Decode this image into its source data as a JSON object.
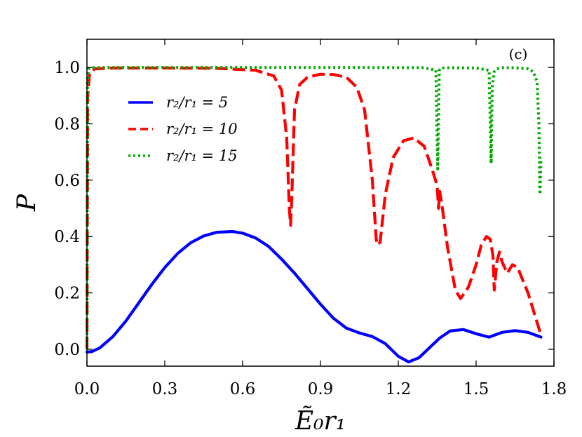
{
  "chart_data": {
    "type": "line",
    "panel_label": "(c)",
    "xlabel": "Ẽ₀r₁",
    "ylabel": "P",
    "xlim": [
      0.0,
      1.8
    ],
    "ylim": [
      -0.06,
      1.1
    ],
    "xticks": [
      0.0,
      0.3,
      0.6,
      0.9,
      1.2,
      1.5,
      1.8
    ],
    "xtick_labels": [
      "0.0",
      "0.3",
      "0.6",
      "0.9",
      "1.2",
      "1.5",
      "1.8"
    ],
    "yticks": [
      0.0,
      0.2,
      0.4,
      0.6,
      0.8,
      1.0
    ],
    "ytick_labels": [
      "0.0",
      "0.2",
      "0.4",
      "0.6",
      "0.8",
      "1.0"
    ],
    "legend_position": "upper-left",
    "series": [
      {
        "name": "r₂/r₁ = 5",
        "color": "#0000ff",
        "style": "solid",
        "x": [
          0.0,
          0.02,
          0.05,
          0.1,
          0.15,
          0.2,
          0.25,
          0.3,
          0.35,
          0.4,
          0.45,
          0.5,
          0.56,
          0.6,
          0.65,
          0.7,
          0.75,
          0.8,
          0.85,
          0.9,
          0.95,
          1.0,
          1.05,
          1.1,
          1.15,
          1.2,
          1.24,
          1.28,
          1.32,
          1.36,
          1.4,
          1.45,
          1.5,
          1.55,
          1.6,
          1.65,
          1.7,
          1.75
        ],
        "y": [
          -0.01,
          -0.008,
          0.005,
          0.045,
          0.1,
          0.165,
          0.23,
          0.29,
          0.34,
          0.378,
          0.402,
          0.415,
          0.418,
          0.412,
          0.395,
          0.365,
          0.32,
          0.27,
          0.215,
          0.16,
          0.11,
          0.075,
          0.058,
          0.045,
          0.02,
          -0.025,
          -0.045,
          -0.03,
          0.005,
          0.04,
          0.065,
          0.07,
          0.055,
          0.043,
          0.06,
          0.066,
          0.06,
          0.043
        ]
      },
      {
        "name": "r₂/r₁ = 10",
        "color": "#ff0000",
        "style": "dashed",
        "x": [
          0.0,
          0.003,
          0.01,
          0.03,
          0.1,
          0.3,
          0.5,
          0.65,
          0.72,
          0.75,
          0.77,
          0.78,
          0.785,
          0.79,
          0.8,
          0.82,
          0.85,
          0.9,
          0.95,
          1.0,
          1.04,
          1.07,
          1.1,
          1.115,
          1.12,
          1.13,
          1.15,
          1.18,
          1.22,
          1.26,
          1.3,
          1.33,
          1.35,
          1.355,
          1.36,
          1.37,
          1.39,
          1.42,
          1.44,
          1.47,
          1.5,
          1.52,
          1.54,
          1.555,
          1.565,
          1.57,
          1.58,
          1.59,
          1.6,
          1.62,
          1.64,
          1.66,
          1.7,
          1.75
        ],
        "y": [
          0.0,
          0.9,
          0.98,
          0.995,
          0.998,
          0.998,
          0.997,
          0.99,
          0.97,
          0.92,
          0.75,
          0.5,
          0.44,
          0.55,
          0.85,
          0.94,
          0.965,
          0.976,
          0.975,
          0.965,
          0.93,
          0.85,
          0.6,
          0.39,
          0.37,
          0.38,
          0.55,
          0.68,
          0.74,
          0.75,
          0.72,
          0.64,
          0.58,
          0.5,
          0.56,
          0.5,
          0.36,
          0.21,
          0.18,
          0.22,
          0.3,
          0.37,
          0.4,
          0.39,
          0.33,
          0.21,
          0.31,
          0.345,
          0.31,
          0.27,
          0.3,
          0.29,
          0.2,
          0.05
        ]
      },
      {
        "name": "r₂/r₁ = 15",
        "color": "#00aa00",
        "style": "dotted",
        "x": [
          0.0,
          0.002,
          0.006,
          0.02,
          0.1,
          0.5,
          1.0,
          1.3,
          1.345,
          1.352,
          1.358,
          1.365,
          1.4,
          1.5,
          1.55,
          1.558,
          1.562,
          1.57,
          1.58,
          1.6,
          1.65,
          1.7,
          1.72,
          1.735,
          1.742,
          1.746,
          1.75
        ],
        "y": [
          0.0,
          0.95,
          0.995,
          0.999,
          1.0,
          1.0,
          1.0,
          0.999,
          0.99,
          0.64,
          0.99,
          0.998,
          0.999,
          0.998,
          0.99,
          0.66,
          0.93,
          0.985,
          0.995,
          0.999,
          0.999,
          0.995,
          0.985,
          0.95,
          0.8,
          0.55,
          0.68
        ]
      }
    ]
  }
}
